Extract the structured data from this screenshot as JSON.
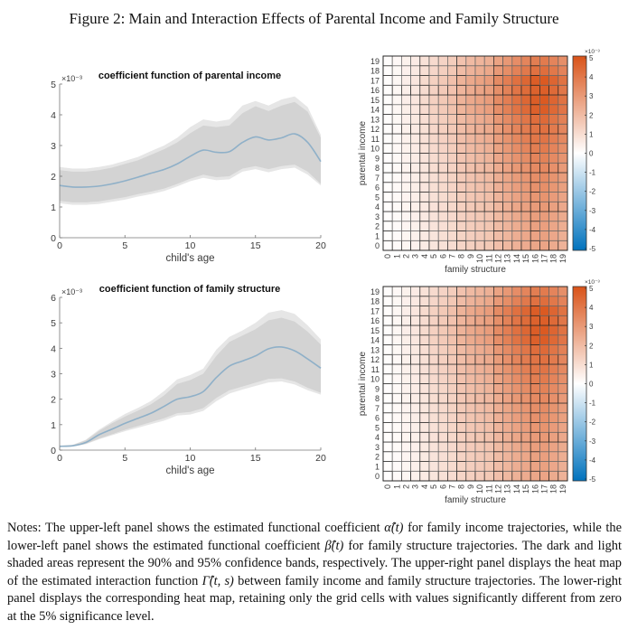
{
  "figure_title": "Figure 2: Main and Interaction Effects of Parental Income and Family Structure",
  "notes": {
    "p1": "Notes: The upper-left panel shows the estimated functional coefficient ",
    "alpha": "α̂(t)",
    "p2": " for family income trajectories, while the lower-left panel shows the estimated functional coefficient ",
    "beta": "β̂(t)",
    "p3": " for family structure trajectories. The dark and light shaded areas represent the 90% and 95% confidence bands, respectively. The upper-right panel displays the heat map of the estimated interaction function ",
    "gamma": "Γ̂(t, s)",
    "p4": " between family income and family structure trajectories. The lower-right panel displays the corresponding heat map, retaining only the grid cells with values significantly different from zero at the 5% significance level."
  },
  "colors": {
    "line": "#8fb0c8",
    "band90": "#d3d3d3",
    "band95": "#e6e6e6",
    "positive": "#d95319",
    "zero": "#ffffff",
    "negative": "#0072bd"
  },
  "chart_data": [
    {
      "type": "line",
      "title": "coefficient function of parental income",
      "xlabel": "child's age",
      "ylabel": "",
      "exponent_label": "×10⁻³",
      "xlim": [
        0,
        20
      ],
      "ylim": [
        0,
        5
      ],
      "xticks": [
        "0",
        "5",
        "10",
        "15",
        "20"
      ],
      "yticks": [
        "0",
        "1",
        "2",
        "3",
        "4",
        "5"
      ],
      "x": [
        0,
        1,
        2,
        3,
        4,
        5,
        6,
        7,
        8,
        9,
        10,
        11,
        12,
        13,
        14,
        15,
        16,
        17,
        18,
        19,
        20
      ],
      "series": [
        {
          "name": "estimate",
          "values": [
            1.7,
            1.65,
            1.65,
            1.68,
            1.75,
            1.85,
            1.97,
            2.1,
            2.22,
            2.4,
            2.65,
            2.85,
            2.78,
            2.8,
            3.1,
            3.28,
            3.18,
            3.25,
            3.38,
            3.1,
            2.48
          ]
        },
        {
          "name": "lower90",
          "values": [
            1.2,
            1.15,
            1.15,
            1.18,
            1.25,
            1.32,
            1.42,
            1.5,
            1.6,
            1.75,
            1.92,
            2.05,
            1.97,
            2.0,
            2.25,
            2.33,
            2.23,
            2.33,
            2.38,
            2.15,
            1.75
          ]
        },
        {
          "name": "upper90",
          "values": [
            2.2,
            2.15,
            2.15,
            2.2,
            2.28,
            2.4,
            2.52,
            2.7,
            2.88,
            3.1,
            3.4,
            3.65,
            3.6,
            3.65,
            4.05,
            4.28,
            4.12,
            4.3,
            4.42,
            4.1,
            3.25
          ]
        },
        {
          "name": "lower95",
          "values": [
            1.12,
            1.07,
            1.07,
            1.1,
            1.17,
            1.24,
            1.34,
            1.42,
            1.52,
            1.67,
            1.84,
            1.95,
            1.87,
            1.9,
            2.15,
            2.23,
            2.13,
            2.23,
            2.28,
            2.05,
            1.7
          ]
        },
        {
          "name": "upper95",
          "values": [
            2.3,
            2.25,
            2.25,
            2.3,
            2.38,
            2.5,
            2.63,
            2.82,
            3.0,
            3.25,
            3.6,
            3.85,
            3.78,
            3.85,
            4.3,
            4.45,
            4.3,
            4.5,
            4.6,
            4.25,
            3.35
          ]
        }
      ]
    },
    {
      "type": "line",
      "title": "coefficient function of family structure",
      "xlabel": "child's age",
      "ylabel": "",
      "exponent_label": "×10⁻³",
      "xlim": [
        0,
        20
      ],
      "ylim": [
        0,
        6
      ],
      "xticks": [
        "0",
        "5",
        "10",
        "15",
        "20"
      ],
      "yticks": [
        "0",
        "1",
        "2",
        "3",
        "4",
        "5",
        "6"
      ],
      "x": [
        0,
        1,
        2,
        3,
        4,
        5,
        6,
        7,
        8,
        9,
        10,
        11,
        12,
        13,
        14,
        15,
        16,
        17,
        18,
        19,
        20
      ],
      "series": [
        {
          "name": "estimate",
          "values": [
            0.15,
            0.17,
            0.3,
            0.6,
            0.82,
            1.05,
            1.25,
            1.45,
            1.72,
            2.0,
            2.1,
            2.3,
            2.85,
            3.3,
            3.5,
            3.7,
            3.98,
            4.05,
            3.9,
            3.58,
            3.22
          ]
        },
        {
          "name": "lower90",
          "values": [
            0.13,
            0.15,
            0.25,
            0.45,
            0.62,
            0.8,
            0.95,
            1.1,
            1.25,
            1.45,
            1.5,
            1.65,
            2.05,
            2.35,
            2.5,
            2.65,
            2.8,
            2.82,
            2.7,
            2.45,
            2.25
          ]
        },
        {
          "name": "upper90",
          "values": [
            0.17,
            0.2,
            0.38,
            0.75,
            1.05,
            1.32,
            1.55,
            1.8,
            2.15,
            2.6,
            2.75,
            3.0,
            3.7,
            4.25,
            4.5,
            4.75,
            5.1,
            5.2,
            5.05,
            4.65,
            4.15
          ]
        },
        {
          "name": "lower95",
          "values": [
            0.12,
            0.14,
            0.23,
            0.42,
            0.58,
            0.74,
            0.88,
            1.02,
            1.16,
            1.36,
            1.4,
            1.54,
            1.92,
            2.22,
            2.38,
            2.52,
            2.66,
            2.7,
            2.58,
            2.35,
            2.18
          ]
        },
        {
          "name": "upper95",
          "values": [
            0.18,
            0.21,
            0.41,
            0.8,
            1.12,
            1.42,
            1.66,
            1.93,
            2.32,
            2.78,
            2.95,
            3.2,
            3.95,
            4.45,
            4.7,
            5.0,
            5.4,
            5.5,
            5.35,
            4.9,
            4.35
          ]
        }
      ]
    },
    {
      "type": "heatmap",
      "title": "",
      "xlabel": "family structure",
      "ylabel": "parental income",
      "x_categories": [
        "0",
        "1",
        "2",
        "3",
        "4",
        "5",
        "6",
        "7",
        "8",
        "9",
        "10",
        "11",
        "12",
        "13",
        "14",
        "15",
        "16",
        "17",
        "18",
        "19"
      ],
      "y_categories": [
        "0",
        "1",
        "2",
        "3",
        "4",
        "5",
        "6",
        "7",
        "8",
        "9",
        "10",
        "11",
        "12",
        "13",
        "14",
        "15",
        "16",
        "17",
        "18",
        "19"
      ],
      "z_model": "z[row][col] = scale * row_profile[row] * col_profile[col] (×10⁻³)",
      "scale": 4.8,
      "row_profile": [
        0.55,
        0.57,
        0.58,
        0.6,
        0.62,
        0.65,
        0.68,
        0.7,
        0.72,
        0.76,
        0.8,
        0.84,
        0.86,
        0.9,
        0.98,
        1.0,
        0.97,
        1.0,
        0.88,
        0.8
      ],
      "col_profile": [
        0.02,
        0.05,
        0.1,
        0.15,
        0.22,
        0.28,
        0.33,
        0.38,
        0.46,
        0.52,
        0.56,
        0.6,
        0.7,
        0.78,
        0.86,
        0.92,
        0.98,
        1.0,
        0.93,
        0.85
      ],
      "colorbar": {
        "min": -5,
        "max": 5,
        "ticks": [
          "-5",
          "-4",
          "-3",
          "-2",
          "-1",
          "0",
          "1",
          "2",
          "3",
          "4",
          "5"
        ],
        "exponent_label": "×10⁻³"
      },
      "significant_only": false
    },
    {
      "type": "heatmap",
      "title": "",
      "xlabel": "family structure",
      "ylabel": "parental income",
      "x_categories": [
        "0",
        "1",
        "2",
        "3",
        "4",
        "5",
        "6",
        "7",
        "8",
        "9",
        "10",
        "11",
        "12",
        "13",
        "14",
        "15",
        "16",
        "17",
        "18",
        "19"
      ],
      "y_categories": [
        "0",
        "1",
        "2",
        "3",
        "4",
        "5",
        "6",
        "7",
        "8",
        "9",
        "10",
        "11",
        "12",
        "13",
        "14",
        "15",
        "16",
        "17",
        "18",
        "19"
      ],
      "z_model": "z[row][col] = scale * row_profile[row] * col_profile[col] (×10⁻³)",
      "scale": 4.8,
      "row_profile": [
        0.55,
        0.57,
        0.58,
        0.6,
        0.62,
        0.65,
        0.68,
        0.7,
        0.72,
        0.76,
        0.8,
        0.84,
        0.86,
        0.9,
        0.98,
        1.0,
        0.97,
        1.0,
        0.88,
        0.8
      ],
      "col_profile": [
        0.02,
        0.05,
        0.1,
        0.15,
        0.22,
        0.28,
        0.33,
        0.38,
        0.46,
        0.52,
        0.56,
        0.6,
        0.7,
        0.78,
        0.86,
        0.92,
        0.98,
        1.0,
        0.93,
        0.85
      ],
      "colorbar": {
        "min": -5,
        "max": 5,
        "ticks": [
          "-5",
          "-4",
          "-3",
          "-2",
          "-1",
          "0",
          "1",
          "2",
          "3",
          "4",
          "5"
        ],
        "exponent_label": "×10⁻³"
      },
      "significant_only": true
    }
  ]
}
